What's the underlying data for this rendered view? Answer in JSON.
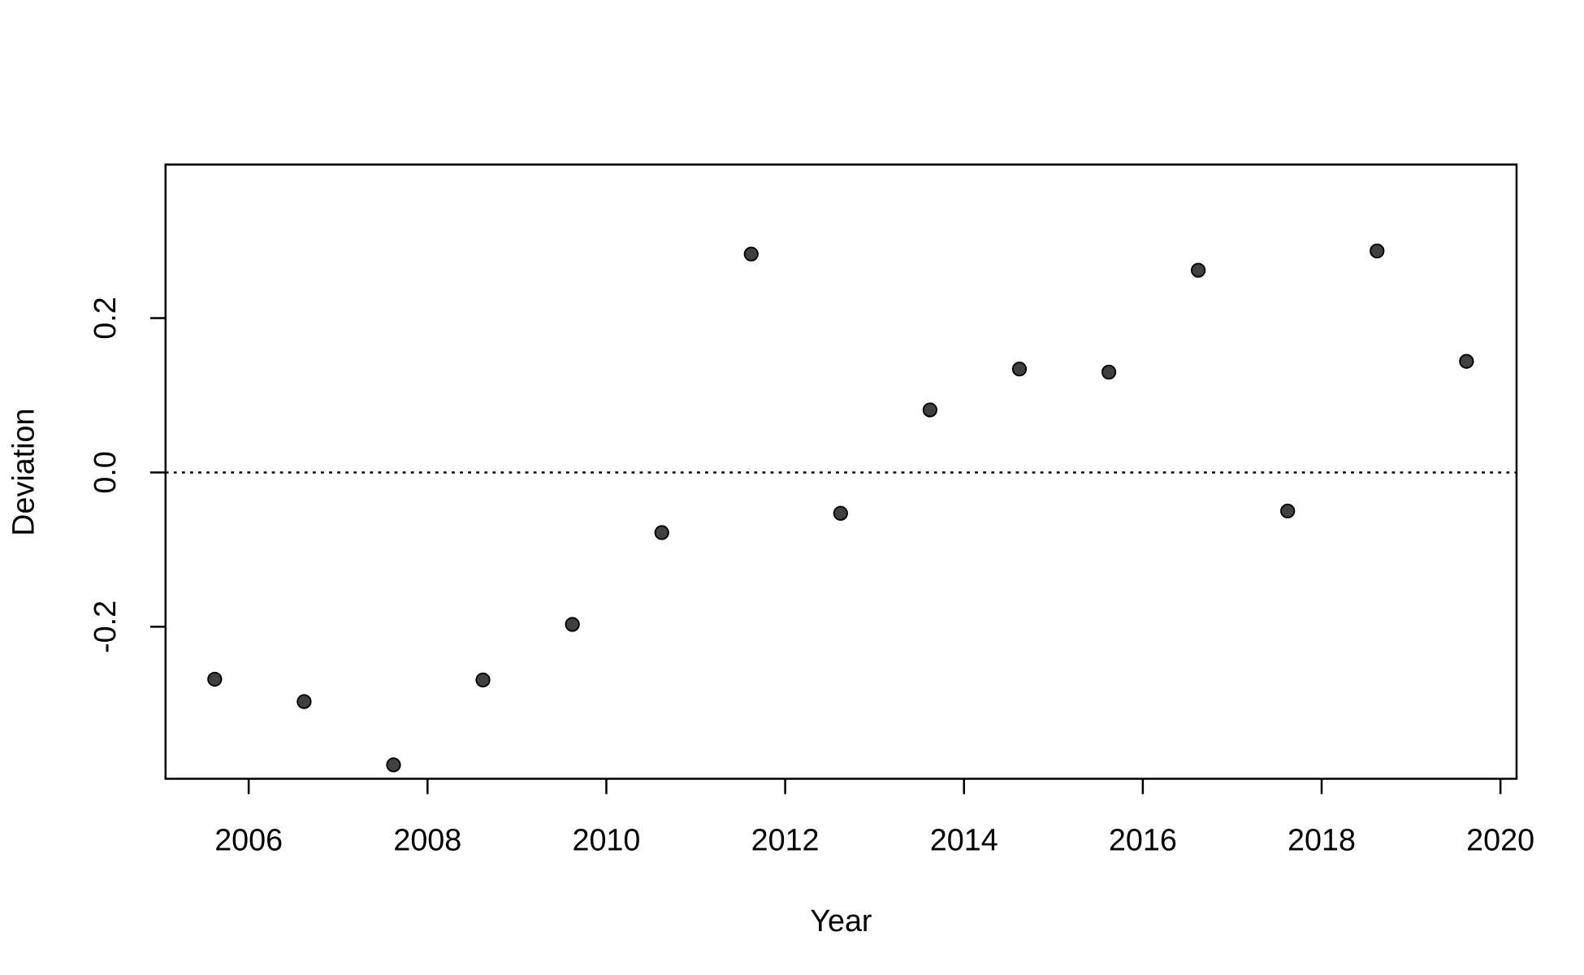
{
  "chart_data": {
    "type": "scatter",
    "x_label": "Year",
    "y_label": "Deviation",
    "x": [
      2005.62,
      2006.62,
      2007.62,
      2008.62,
      2009.62,
      2010.62,
      2011.62,
      2012.62,
      2013.62,
      2014.62,
      2015.62,
      2016.62,
      2017.62,
      2018.62,
      2019.62
    ],
    "values": [
      -0.268,
      -0.297,
      -0.379,
      -0.269,
      -0.197,
      -0.078,
      0.283,
      -0.053,
      0.081,
      0.134,
      0.13,
      0.262,
      -0.05,
      0.287,
      0.144
    ],
    "color": "#404040",
    "xlim": [
      2005.07,
      2020.18
    ],
    "ylim": [
      -0.397,
      0.399
    ],
    "xticks": [
      2006,
      2008,
      2010,
      2012,
      2014,
      2016,
      2018,
      2020
    ],
    "yticks": [
      -0.2,
      {
        "value": 0,
        "label": "0.0"
      },
      0.2
    ],
    "reference_line": 0
  }
}
